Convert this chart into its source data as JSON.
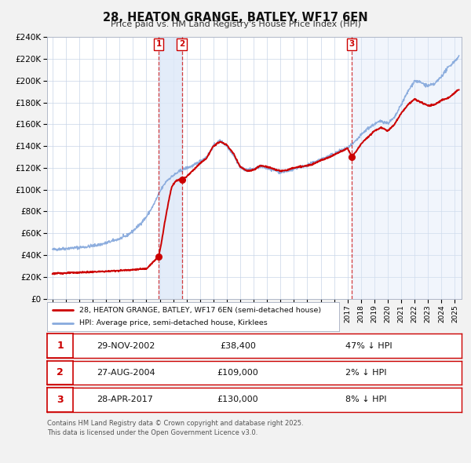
{
  "title": "28, HEATON GRANGE, BATLEY, WF17 6EN",
  "subtitle": "Price paid vs. HM Land Registry's House Price Index (HPI)",
  "bg_color": "#f2f2f2",
  "plot_bg_color": "#ffffff",
  "grid_color": "#c8d4e8",
  "red_line_label": "28, HEATON GRANGE, BATLEY, WF17 6EN (semi-detached house)",
  "blue_line_label": "HPI: Average price, semi-detached house, Kirklees",
  "red_color": "#cc0000",
  "blue_color": "#88aadd",
  "sale_points": [
    {
      "num": 1,
      "date": "29-NOV-2002",
      "price": "£38,400",
      "hpi_diff": "47% ↓ HPI",
      "x_year": 2002.91,
      "y_price": 38400
    },
    {
      "num": 2,
      "date": "27-AUG-2004",
      "price": "£109,000",
      "hpi_diff": "2% ↓ HPI",
      "x_year": 2004.65,
      "y_price": 109000
    },
    {
      "num": 3,
      "date": "28-APR-2017",
      "price": "£130,000",
      "hpi_diff": "8% ↓ HPI",
      "x_year": 2017.32,
      "y_price": 130000
    }
  ],
  "ylim": [
    0,
    240000
  ],
  "yticks": [
    0,
    20000,
    40000,
    60000,
    80000,
    100000,
    120000,
    140000,
    160000,
    180000,
    200000,
    220000,
    240000
  ],
  "ytick_labels": [
    "£0",
    "£20K",
    "£40K",
    "£60K",
    "£80K",
    "£100K",
    "£120K",
    "£140K",
    "£160K",
    "£180K",
    "£200K",
    "£220K",
    "£240K"
  ],
  "xlim_start": 1994.6,
  "xlim_end": 2025.5,
  "xticks": [
    1995,
    1996,
    1997,
    1998,
    1999,
    2000,
    2001,
    2002,
    2003,
    2004,
    2005,
    2006,
    2007,
    2008,
    2009,
    2010,
    2011,
    2012,
    2013,
    2014,
    2015,
    2016,
    2017,
    2018,
    2019,
    2020,
    2021,
    2022,
    2023,
    2024,
    2025
  ],
  "footer_line1": "Contains HM Land Registry data © Crown copyright and database right 2025.",
  "footer_line2": "This data is licensed under the Open Government Licence v3.0.",
  "span1_color": "#dde8f8",
  "span3_color": "#dde8f8"
}
